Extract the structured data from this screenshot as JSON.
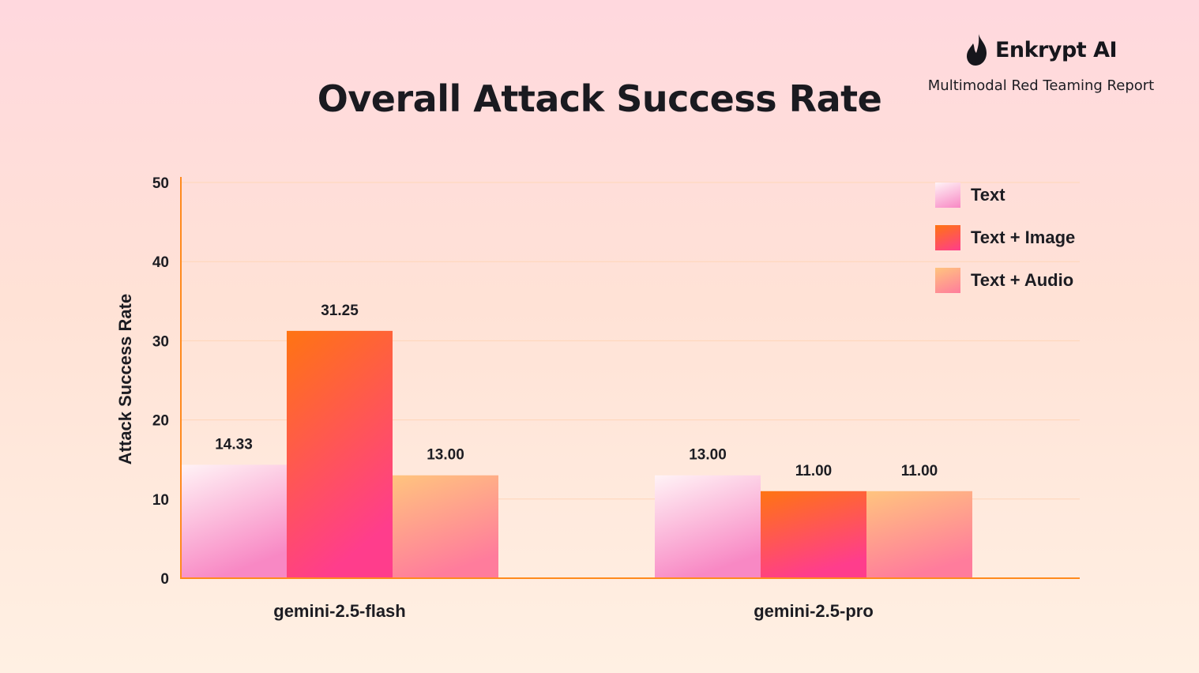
{
  "brand": {
    "name": "Enkrypt AI",
    "subtitle": "Multimodal Red Teaming Report",
    "logo_icon": "flame-icon"
  },
  "chart_data": {
    "type": "bar",
    "title": "Overall Attack Success Rate",
    "xlabel": "",
    "ylabel": "Attack Success Rate",
    "ylim": [
      0,
      50
    ],
    "yticks": [
      0,
      10,
      20,
      30,
      40,
      50
    ],
    "grid": true,
    "legend_position": "top-right",
    "categories": [
      "gemini-2.5-flash",
      "gemini-2.5-pro"
    ],
    "series": [
      {
        "name": "Text",
        "values": [
          14.33,
          13.0
        ],
        "labels": [
          "14.33",
          "13.00"
        ],
        "colors": [
          "#fff3f6",
          "#f888c4"
        ]
      },
      {
        "name": "Text + Image",
        "values": [
          31.25,
          11.0
        ],
        "labels": [
          "31.25",
          "11.00"
        ],
        "colors": [
          "#ff7412",
          "#ff3d8c"
        ]
      },
      {
        "name": "Text + Audio",
        "values": [
          13.0,
          11.0
        ],
        "labels": [
          "13.00",
          "11.00"
        ],
        "colors": [
          "#ffc47e",
          "#ff7c9c"
        ]
      }
    ],
    "axis_color": "#ff8a1e",
    "grid_color": "#ffd5b8"
  }
}
